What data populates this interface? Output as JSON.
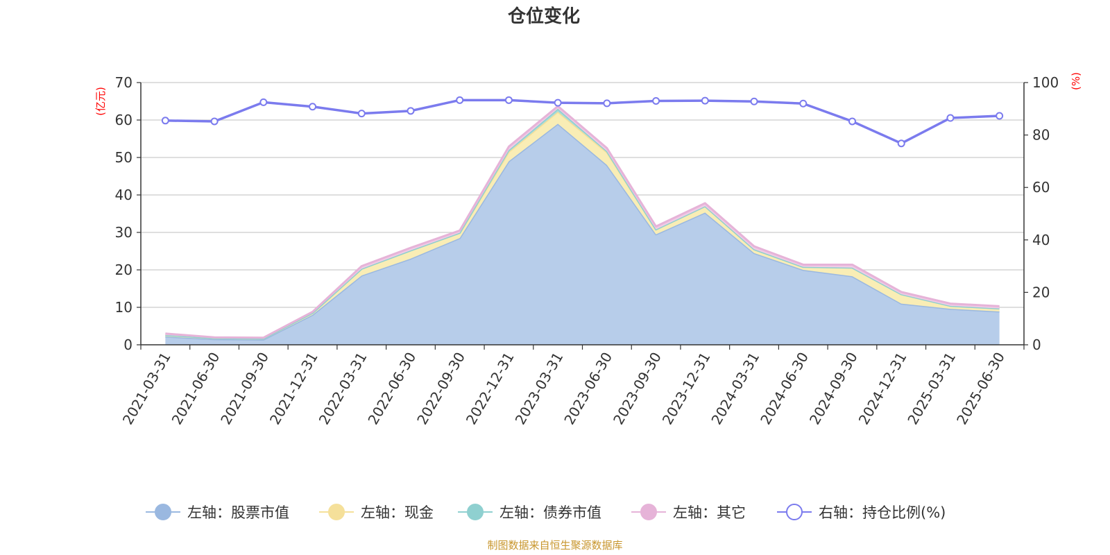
{
  "chart_data": {
    "type": "area",
    "title": "仓位变化",
    "left_unit": "(亿元)",
    "right_unit": "(%)",
    "categories": [
      "2021-03-31",
      "2021-06-30",
      "2021-09-30",
      "2021-12-31",
      "2022-03-31",
      "2022-06-30",
      "2022-09-30",
      "2022-12-31",
      "2023-03-31",
      "2023-06-30",
      "2023-09-30",
      "2023-12-31",
      "2024-03-31",
      "2024-06-30",
      "2024-09-30",
      "2024-12-31",
      "2025-03-31",
      "2025-06-30"
    ],
    "left_axis": {
      "min": 0,
      "max": 70,
      "ticks": [
        "0",
        "10",
        "20",
        "30",
        "40",
        "50",
        "60",
        "70"
      ]
    },
    "right_axis": {
      "min": 0,
      "max": 100,
      "ticks": [
        "0",
        "20",
        "40",
        "60",
        "80",
        "100"
      ]
    },
    "stacked_series": [
      {
        "name": "左轴：股票市值",
        "color": "#9ab8e0",
        "fill": "#b7cdea",
        "values": [
          2.2,
          1.5,
          1.4,
          8.0,
          18.5,
          23.0,
          28.5,
          49.0,
          59.0,
          48.0,
          29.5,
          35.3,
          24.5,
          20.0,
          18.3,
          11.0,
          9.6,
          8.9
        ]
      },
      {
        "name": "左轴：现金",
        "color": "#f5e09a",
        "fill": "#f9edb5",
        "values": [
          0.4,
          0.3,
          0.3,
          0.5,
          1.8,
          2.2,
          1.4,
          2.5,
          3.2,
          3.4,
          1.3,
          1.7,
          1.0,
          0.8,
          2.3,
          2.5,
          0.8,
          0.8
        ]
      },
      {
        "name": "左轴：债券市值",
        "color": "#8fd0d0",
        "fill": "#a8dada",
        "values": [
          0,
          0,
          0,
          0,
          0,
          0,
          0,
          0.5,
          0.8,
          0.3,
          0,
          0,
          0,
          0,
          0,
          0,
          0,
          0
        ]
      },
      {
        "name": "左轴：其它",
        "color": "#e6b3d8",
        "fill": "#f0cbe5",
        "values": [
          0.4,
          0.2,
          0.2,
          0.3,
          0.7,
          0.7,
          0.6,
          0.9,
          0.7,
          0.8,
          0.8,
          0.8,
          0.8,
          0.6,
          0.8,
          0.6,
          0.6,
          0.6
        ]
      }
    ],
    "line_series": {
      "name": "右轴：持仓比例(%)",
      "color": "#7b7bee",
      "values": [
        85.5,
        85.2,
        92.5,
        90.8,
        88.2,
        89.2,
        93.3,
        93.3,
        92.3,
        92.1,
        93.0,
        93.1,
        92.8,
        92.0,
        85.2,
        76.8,
        86.5,
        87.3
      ]
    },
    "grid": true,
    "legend_position": "bottom"
  },
  "source_note": "制图数据来自恒生聚源数据库"
}
